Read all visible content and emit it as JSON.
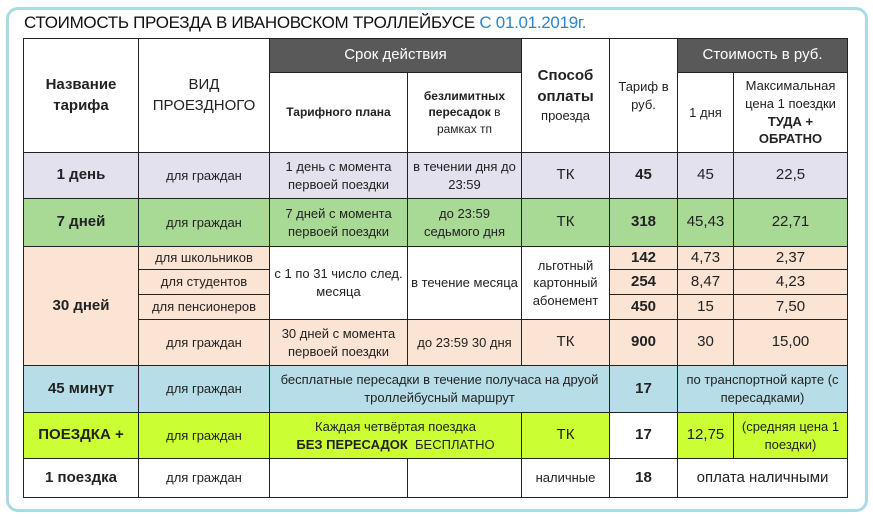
{
  "title": {
    "main": "СТОИМОСТЬ ПРОЕЗДА В ИВАНОВСКОМ ТРОЛЛЕЙБУСЕ",
    "date": "С 01.01.2019г."
  },
  "header": {
    "tariff_name": "Название тарифа",
    "pass_type": "ВИД ПРОЕЗДНОГО",
    "validity": "Срок действия",
    "plan_validity": "Тарифного плана",
    "transfers_bold": "безлимитных пересадок",
    "transfers_rest": "в рамках тп",
    "payment_bold": "Способ оплаты",
    "payment_rest": "проезда",
    "tariff_rub": "Тариф в руб.",
    "cost": "Стоимость в руб.",
    "per_day": "1 дня",
    "max_price": "Максимальная цена 1 поездки",
    "round_trip": "ТУДА + ОБРАТНО"
  },
  "rows": {
    "day1": {
      "name": "1 день",
      "type": "для граждан",
      "plan": "1 день с момента первоей поездки",
      "transfers": "в течении дня до 23:59",
      "payment": "ТК",
      "tariff": "45",
      "per_day": "45",
      "max": "22,5"
    },
    "day7": {
      "name": "7 дней",
      "type": "для граждан",
      "plan": "7 дней с момента первоей поездки",
      "transfers": "до 23:59 седьмого дня",
      "payment": "ТК",
      "tariff": "318",
      "per_day": "45,43",
      "max": "22,71"
    },
    "day30": {
      "name": "30 дней",
      "plan_discount": "с 1 по 31 число след. месяца",
      "transfers_discount": "в течение месяца",
      "payment_discount": "льготный картонный абонемент",
      "sub": [
        {
          "type": "для школьников",
          "tariff": "142",
          "per_day": "4,73",
          "max": "2,37"
        },
        {
          "type": "для студентов",
          "tariff": "254",
          "per_day": "8,47",
          "max": "4,23"
        },
        {
          "type": "для пенсионеров",
          "tariff": "450",
          "per_day": "15",
          "max": "7,50"
        }
      ],
      "citizens": {
        "type": "для граждан",
        "plan": "30 дней с момента первоей поездки",
        "transfers": "до 23:59 30 дня",
        "payment": "ТК",
        "tariff": "900",
        "per_day": "30",
        "max": "15,00"
      }
    },
    "min45": {
      "name": "45 минут",
      "type": "для граждан",
      "note": "бесплатные пересадки в течение получаса на друой троллейбусный маршрут",
      "tariff": "17",
      "cost_note": "по транспортной карте (с  пересадками)"
    },
    "trip_plus": {
      "name": "ПОЕЗДКА +",
      "type": "для граждан",
      "note_line1": "Каждая четвёртая поездка",
      "note_bold": "БЕЗ ПЕРЕСАДОК",
      "note_rest": "БЕСПЛАТНО",
      "payment": "ТК",
      "tariff": "17",
      "per_day": "12,75",
      "max": "(средняя цена 1 поездки)"
    },
    "trip1": {
      "name": "1 поездка",
      "type": "для граждан",
      "payment": "наличные",
      "tariff": "18",
      "cost_note": "оплата наличными"
    }
  },
  "colors": {
    "frame": "#a8dbe6",
    "date": "#2e84c4",
    "header_dark": "#595959",
    "day1": "#e4e1ef",
    "day7": "#a9da95",
    "day30": "#fce4d4",
    "min45": "#b7dde8",
    "trip_plus": "#ccff33"
  }
}
